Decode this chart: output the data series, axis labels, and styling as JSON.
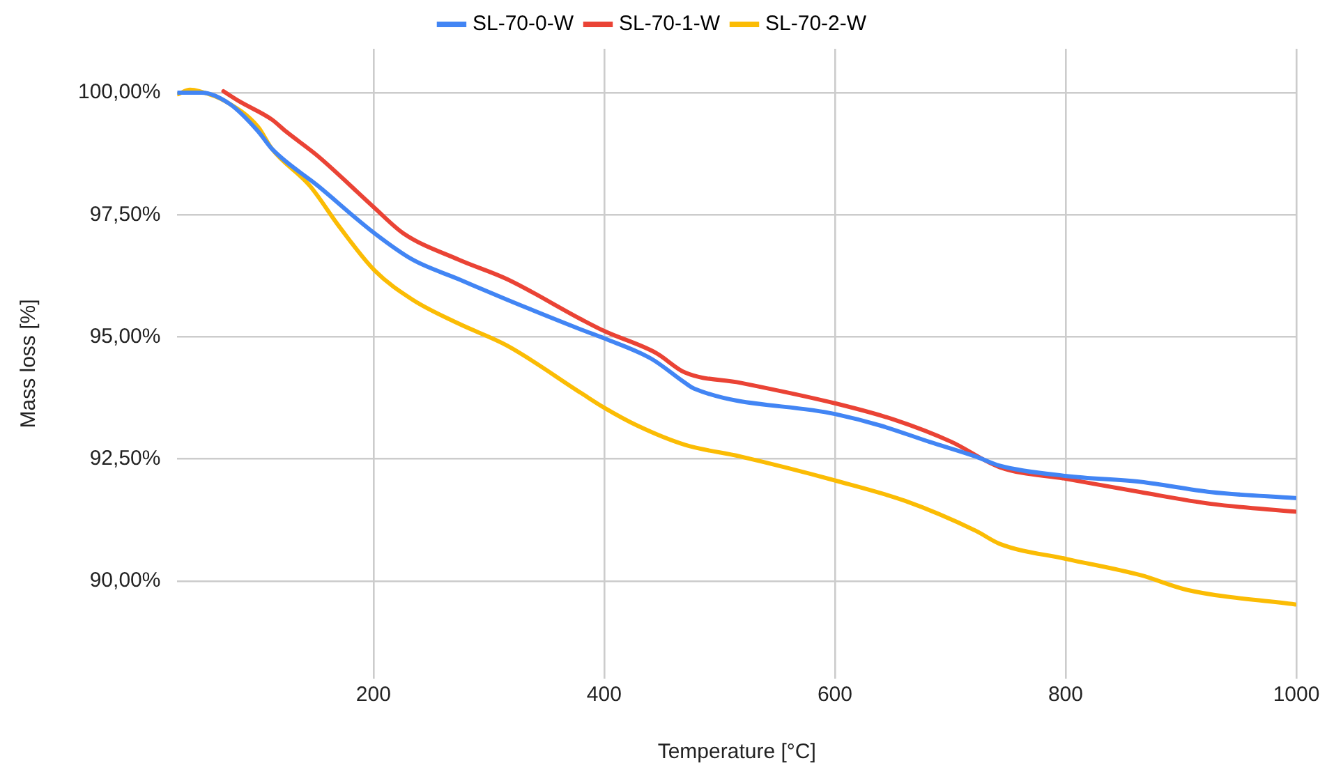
{
  "chart_data": {
    "type": "line",
    "xlabel": "Temperature [°C]",
    "ylabel": "Mass loss [%]",
    "xlim": [
      30,
      1000
    ],
    "xticks": [
      200,
      400,
      600,
      800,
      1000
    ],
    "ylim": [
      88,
      100.9
    ],
    "yticks": [
      {
        "value": 90,
        "label": "90,00%"
      },
      {
        "value": 92.5,
        "label": "92,50%"
      },
      {
        "value": 95,
        "label": "95,00%"
      },
      {
        "value": 97.5,
        "label": "97,50%"
      },
      {
        "value": 100,
        "label": "100,00%"
      }
    ],
    "grid": true,
    "legend": "top",
    "marker": "none",
    "line_style": "solid",
    "series": [
      {
        "name": "SL-70-0-W",
        "color": "#4285f4",
        "x": [
          30.5,
          51,
          76,
          100,
          112,
          152,
          201,
          234,
          274,
          316,
          380,
          400,
          441,
          470,
          478,
          600,
          640,
          682,
          722,
          743,
          801,
          865,
          926,
          999
        ],
        "values": [
          100,
          100,
          99.76,
          99.21,
          98.85,
          98.09,
          97.12,
          96.58,
          96.18,
          95.76,
          95.15,
          94.97,
          94.55,
          94.06,
          93.94,
          93.42,
          93.18,
          92.85,
          92.55,
          92.36,
          92.15,
          92.03,
          91.82,
          91.7
        ]
      },
      {
        "name": "SL-70-1-W",
        "color": "#ea4335",
        "x": [
          70,
          84,
          112,
          124,
          152,
          201,
          226,
          274,
          316,
          380,
          400,
          445,
          470,
          518,
          600,
          652,
          701,
          743,
          801,
          865,
          926,
          999
        ],
        "values": [
          100.03,
          99.82,
          99.45,
          99.21,
          98.7,
          97.64,
          97.12,
          96.58,
          96.18,
          95.36,
          95.12,
          94.67,
          94.27,
          94.06,
          93.64,
          93.3,
          92.85,
          92.33,
          92.09,
          91.82,
          91.58,
          91.42
        ]
      },
      {
        "name": "SL-70-2-W",
        "color": "#fbbc04",
        "x": [
          30.5,
          41,
          49,
          72,
          100,
          112,
          145,
          170,
          201,
          234,
          274,
          316,
          380,
          400,
          429,
          470,
          518,
          600,
          661,
          722,
          743,
          801,
          865,
          905,
          999
        ],
        "values": [
          99.97,
          100.06,
          100.03,
          99.82,
          99.3,
          98.85,
          98.09,
          97.27,
          96.36,
          95.76,
          95.27,
          94.82,
          93.85,
          93.55,
          93.18,
          92.79,
          92.55,
          92.06,
          91.64,
          91.03,
          90.76,
          90.45,
          90.12,
          89.82,
          89.52
        ]
      }
    ]
  }
}
